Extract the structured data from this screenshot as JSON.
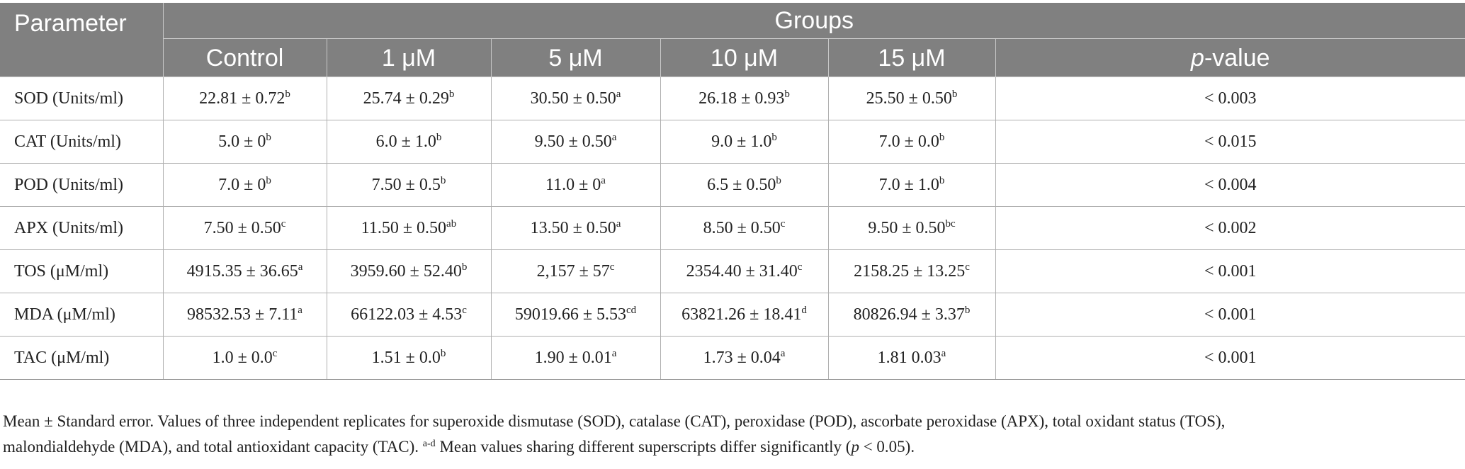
{
  "table": {
    "header": {
      "parameter": "Parameter",
      "groups": "Groups",
      "columns": [
        {
          "text": "Control"
        },
        {
          "text": "1 μM"
        },
        {
          "text": "5 μM"
        },
        {
          "text": "10 μM"
        },
        {
          "text": "15 μM"
        },
        {
          "italic": "p",
          "text": "-value"
        }
      ]
    },
    "rows": [
      {
        "parameter": "SOD (Units/ml)",
        "cells": [
          {
            "value": "22.81 ± 0.72",
            "sup": "b"
          },
          {
            "value": "25.74 ± 0.29",
            "sup": "b"
          },
          {
            "value": "30.50 ± 0.50",
            "sup": "a"
          },
          {
            "value": "26.18 ± 0.93",
            "sup": "b"
          },
          {
            "value": "25.50 ± 0.50",
            "sup": "b"
          }
        ],
        "p": "< 0.003"
      },
      {
        "parameter": "CAT (Units/ml)",
        "cells": [
          {
            "value": "5.0 ± 0",
            "sup": "b"
          },
          {
            "value": "6.0 ± 1.0",
            "sup": "b"
          },
          {
            "value": "9.50 ± 0.50",
            "sup": "a"
          },
          {
            "value": "9.0 ± 1.0",
            "sup": "b"
          },
          {
            "value": "7.0 ± 0.0",
            "sup": "b"
          }
        ],
        "p": "< 0.015"
      },
      {
        "parameter": "POD (Units/ml)",
        "cells": [
          {
            "value": "7.0 ± 0",
            "sup": "b"
          },
          {
            "value": "7.50 ± 0.5",
            "sup": "b"
          },
          {
            "value": "11.0 ± 0",
            "sup": "a"
          },
          {
            "value": "6.5 ± 0.50",
            "sup": "b"
          },
          {
            "value": "7.0 ± 1.0",
            "sup": "b"
          }
        ],
        "p": "< 0.004"
      },
      {
        "parameter": "APX (Units/ml)",
        "cells": [
          {
            "value": "7.50 ± 0.50",
            "sup": "c"
          },
          {
            "value": "11.50 ± 0.50",
            "sup": "ab"
          },
          {
            "value": "13.50 ± 0.50",
            "sup": "a"
          },
          {
            "value": "8.50 ± 0.50",
            "sup": "c"
          },
          {
            "value": "9.50 ± 0.50",
            "sup": "bc"
          }
        ],
        "p": "< 0.002"
      },
      {
        "parameter": "TOS (μM/ml)",
        "cells": [
          {
            "value": "4915.35 ± 36.65",
            "sup": "a"
          },
          {
            "value": "3959.60 ± 52.40",
            "sup": "b"
          },
          {
            "value": "2,157 ± 57",
            "sup": "c"
          },
          {
            "value": "2354.40 ± 31.40",
            "sup": "c"
          },
          {
            "value": "2158.25 ± 13.25",
            "sup": "c"
          }
        ],
        "p": "< 0.001"
      },
      {
        "parameter": "MDA (μM/ml)",
        "cells": [
          {
            "value": "98532.53 ± 7.11",
            "sup": "a"
          },
          {
            "value": "66122.03 ± 4.53",
            "sup": "c"
          },
          {
            "value": "59019.66 ± 5.53",
            "sup": "cd"
          },
          {
            "value": "63821.26 ± 18.41",
            "sup": "d"
          },
          {
            "value": "80826.94 ± 3.37",
            "sup": "b"
          }
        ],
        "p": "< 0.001"
      },
      {
        "parameter": "TAC (μM/ml)",
        "cells": [
          {
            "value": "1.0 ± 0.0",
            "sup": "c"
          },
          {
            "value": "1.51 ± 0.0",
            "sup": "b"
          },
          {
            "value": "1.90 ± 0.01",
            "sup": "a"
          },
          {
            "value": "1.73 ± 0.04",
            "sup": "a"
          },
          {
            "value": "1.81 0.03",
            "sup": "a"
          }
        ],
        "p": "< 0.001"
      }
    ]
  },
  "footnote": {
    "line1": "Mean ± Standard error. Values of three independent replicates for superoxide dismutase (SOD), catalase (CAT), peroxidase (POD), ascorbate peroxidase (APX), total oxidant status (TOS),",
    "line2_a": "malondialdehyde (MDA), and total antioxidant capacity (TAC). ",
    "line2_sup": "a-d",
    "line2_b": " Mean values sharing different superscripts differ significantly (",
    "line2_p": "p",
    "line2_c": " < 0.05)."
  },
  "colors": {
    "header_bg": "#808080",
    "header_text": "#ffffff",
    "grid_line": "#b0b0b0",
    "body_text": "#222222"
  }
}
